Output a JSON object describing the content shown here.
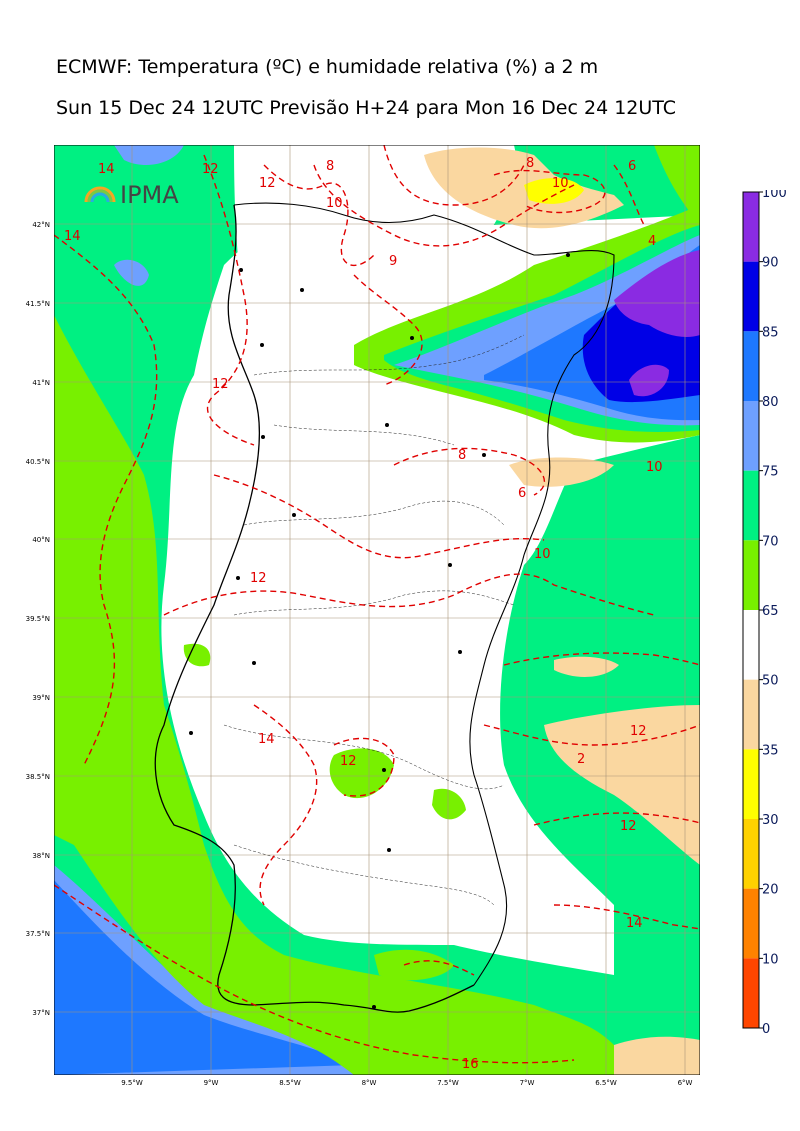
{
  "header": {
    "title": "ECMWF: Temperatura (ºC) e humidade relativa (%) a 2 m",
    "subtitle": "Sun 15 Dec 24 12UTC Previsão H+24 para Mon 16 Dec 24 12UTC"
  },
  "logo": {
    "text": "IPMA",
    "icon": "ipma-rainbow-icon"
  },
  "map": {
    "lat_labels": [
      "42°N",
      "41.5°N",
      "41°N",
      "40.5°N",
      "40°N",
      "39.5°N",
      "39°N",
      "38.5°N",
      "38°N",
      "37.5°N",
      "37°N"
    ],
    "lon_labels": [
      "9.5°W",
      "9°W",
      "8.5°W",
      "8°W",
      "7.5°W",
      "7°W",
      "6.5°W",
      "6°W"
    ],
    "contour_labels": [
      "14",
      "12",
      "12",
      "8",
      "10",
      "8",
      "6",
      "10",
      "4",
      "14",
      "12",
      "9",
      "8",
      "10",
      "6",
      "10",
      "12",
      "14",
      "12",
      "12",
      "2",
      "12",
      "14",
      "16"
    ]
  },
  "legend": {
    "ticks": [
      "100",
      "90",
      "85",
      "80",
      "75",
      "70",
      "65",
      "50",
      "35",
      "30",
      "20",
      "10",
      "0"
    ],
    "bands": [
      {
        "from": 90,
        "to": 100,
        "color": "#8a2be2"
      },
      {
        "from": 85,
        "to": 90,
        "color": "#0000e6"
      },
      {
        "from": 80,
        "to": 85,
        "color": "#1e78ff"
      },
      {
        "from": 75,
        "to": 80,
        "color": "#6ea0ff"
      },
      {
        "from": 70,
        "to": 75,
        "color": "#00f082"
      },
      {
        "from": 65,
        "to": 70,
        "color": "#78f000"
      },
      {
        "from": 50,
        "to": 65,
        "color": "#ffffff"
      },
      {
        "from": 35,
        "to": 50,
        "color": "#fad7a0"
      },
      {
        "from": 30,
        "to": 35,
        "color": "#ffff00"
      },
      {
        "from": 20,
        "to": 30,
        "color": "#ffd200"
      },
      {
        "from": 10,
        "to": 20,
        "color": "#ff8200"
      },
      {
        "from": 0,
        "to": 10,
        "color": "#ff4600"
      }
    ]
  }
}
